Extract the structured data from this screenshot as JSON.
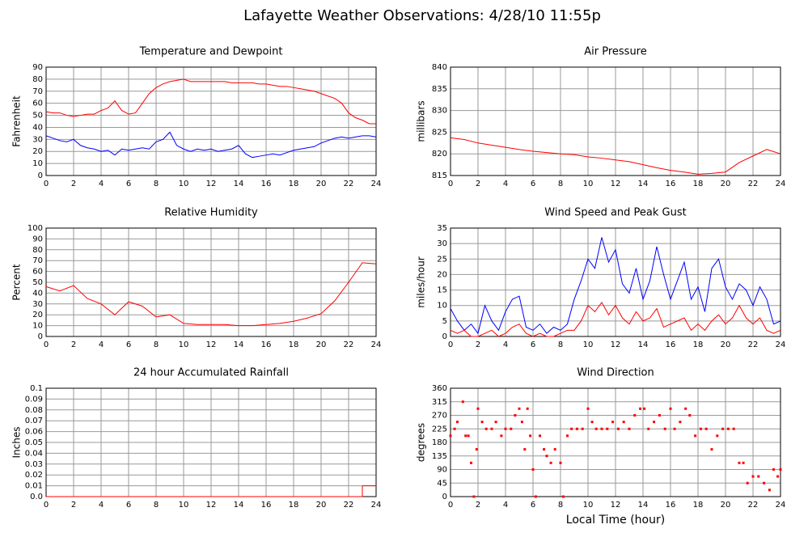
{
  "title": "Lafayette Weather Observations: 4/28/10 11:55p",
  "chart_data": [
    {
      "type": "line",
      "title": "Temperature and Dewpoint",
      "y_label": "Fahrenheit",
      "x": [
        0,
        0.5,
        1,
        1.5,
        2,
        2.5,
        3,
        3.5,
        4,
        4.5,
        5,
        5.5,
        6,
        6.5,
        7,
        7.5,
        8,
        8.5,
        9,
        9.5,
        10,
        10.5,
        11,
        11.5,
        12,
        12.5,
        13,
        13.5,
        14,
        14.5,
        15,
        15.5,
        16,
        16.5,
        17,
        17.5,
        18,
        18.5,
        19,
        19.5,
        20,
        20.5,
        21,
        21.5,
        22,
        22.5,
        23,
        23.5,
        24
      ],
      "series": [
        {
          "color": "#ff0000",
          "values": [
            53,
            52,
            52,
            50,
            49,
            50,
            51,
            51,
            54,
            56,
            62,
            54,
            51,
            52,
            60,
            68,
            73,
            76,
            78,
            79,
            80,
            78,
            78,
            78,
            78,
            78,
            78,
            77,
            77,
            77,
            77,
            76,
            76,
            75,
            74,
            74,
            73,
            72,
            71,
            70,
            68,
            66,
            64,
            60,
            52,
            48,
            46,
            43,
            43
          ]
        },
        {
          "color": "#0000ff",
          "values": [
            33,
            31,
            29,
            28,
            30,
            25,
            23,
            22,
            20,
            21,
            17,
            22,
            21,
            22,
            23,
            22,
            28,
            30,
            36,
            25,
            22,
            20,
            22,
            21,
            22,
            20,
            21,
            22,
            25,
            18,
            15,
            16,
            17,
            18,
            17,
            19,
            21,
            22,
            23,
            24,
            27,
            29,
            31,
            32,
            31,
            32,
            33,
            33,
            32
          ]
        }
      ],
      "xlim": [
        0,
        24
      ],
      "xticks": [
        0,
        2,
        4,
        6,
        8,
        10,
        12,
        14,
        16,
        18,
        20,
        22,
        24
      ],
      "ylim": [
        0,
        90
      ],
      "yticks": [
        0,
        10,
        20,
        30,
        40,
        50,
        60,
        70,
        80,
        90
      ],
      "grid": true
    },
    {
      "type": "line",
      "title": "Air Pressure",
      "y_label": "millibars",
      "x": [
        0,
        1,
        2,
        3,
        4,
        5,
        6,
        7,
        8,
        9,
        10,
        11,
        12,
        13,
        14,
        15,
        16,
        17,
        18,
        19,
        20,
        21,
        22,
        23,
        24
      ],
      "series": [
        {
          "color": "#ff0000",
          "values": [
            823.7,
            823.3,
            822.5,
            822,
            821.5,
            821,
            820.6,
            820.3,
            820,
            819.8,
            819.3,
            819,
            818.6,
            818.2,
            817.5,
            816.8,
            816.2,
            815.8,
            815.3,
            815.5,
            815.8,
            818,
            819.5,
            821,
            820
          ]
        }
      ],
      "xlim": [
        0,
        24
      ],
      "xticks": [
        0,
        2,
        4,
        6,
        8,
        10,
        12,
        14,
        16,
        18,
        20,
        22,
        24
      ],
      "ylim": [
        815,
        840
      ],
      "yticks": [
        815,
        820,
        825,
        830,
        835,
        840
      ],
      "grid": true
    },
    {
      "type": "line",
      "title": "Relative Humidity",
      "y_label": "Percent",
      "x": [
        0,
        1,
        2,
        3,
        4,
        5,
        6,
        7,
        8,
        9,
        10,
        11,
        12,
        13,
        14,
        15,
        16,
        17,
        18,
        19,
        20,
        21,
        22,
        23,
        24
      ],
      "series": [
        {
          "color": "#ff0000",
          "values": [
            46,
            42,
            47,
            35,
            30,
            20,
            32,
            28,
            18,
            20,
            12,
            11,
            11,
            11,
            10,
            10,
            11,
            12,
            14,
            17,
            21,
            33,
            50,
            68,
            67
          ]
        }
      ],
      "xlim": [
        0,
        24
      ],
      "xticks": [
        0,
        2,
        4,
        6,
        8,
        10,
        12,
        14,
        16,
        18,
        20,
        22,
        24
      ],
      "ylim": [
        0,
        100
      ],
      "yticks": [
        0,
        10,
        20,
        30,
        40,
        50,
        60,
        70,
        80,
        90,
        100
      ],
      "grid": true
    },
    {
      "type": "line",
      "title": "Wind Speed and Peak Gust",
      "y_label": "miles/hour",
      "x": [
        0,
        0.5,
        1,
        1.5,
        2,
        2.5,
        3,
        3.5,
        4,
        4.5,
        5,
        5.5,
        6,
        6.5,
        7,
        7.5,
        8,
        8.5,
        9,
        9.5,
        10,
        10.5,
        11,
        11.5,
        12,
        12.5,
        13,
        13.5,
        14,
        14.5,
        15,
        15.5,
        16,
        16.5,
        17,
        17.5,
        18,
        18.5,
        19,
        19.5,
        20,
        20.5,
        21,
        21.5,
        22,
        22.5,
        23,
        23.5,
        24
      ],
      "series": [
        {
          "color": "#0000ff",
          "values": [
            9,
            5,
            2,
            4,
            1,
            10,
            5,
            2,
            8,
            12,
            13,
            3,
            2,
            4,
            1,
            3,
            2,
            4,
            12,
            18,
            25,
            22,
            32,
            24,
            28,
            17,
            14,
            22,
            12,
            18,
            29,
            20,
            12,
            18,
            24,
            12,
            16,
            8,
            22,
            25,
            16,
            12,
            17,
            15,
            10,
            16,
            12,
            4,
            5
          ]
        },
        {
          "color": "#ff0000",
          "values": [
            2,
            1,
            2,
            0,
            0,
            1,
            2,
            0,
            1,
            3,
            4,
            1,
            0,
            1,
            0,
            0,
            1,
            2,
            2,
            5,
            10,
            8,
            11,
            7,
            10,
            6,
            4,
            8,
            5,
            6,
            9,
            3,
            4,
            5,
            6,
            2,
            4,
            2,
            5,
            7,
            4,
            6,
            10,
            6,
            4,
            6,
            2,
            1,
            2
          ]
        }
      ],
      "xlim": [
        0,
        24
      ],
      "xticks": [
        0,
        2,
        4,
        6,
        8,
        10,
        12,
        14,
        16,
        18,
        20,
        22,
        24
      ],
      "ylim": [
        0,
        35
      ],
      "yticks": [
        0,
        5,
        10,
        15,
        20,
        25,
        30,
        35
      ],
      "grid": true
    },
    {
      "type": "line",
      "title": "24 hour Accumulated Rainfall",
      "y_label": "Inches",
      "x": [
        0,
        23,
        23,
        24
      ],
      "series": [
        {
          "color": "#ff0000",
          "values": [
            0,
            0,
            0.01,
            0.01
          ]
        }
      ],
      "xlim": [
        0,
        24
      ],
      "xticks": [
        0,
        2,
        4,
        6,
        8,
        10,
        12,
        14,
        16,
        18,
        20,
        22,
        24
      ],
      "ylim": [
        0,
        0.1
      ],
      "yticks": [
        {
          "value": 0,
          "label": "0.0"
        },
        0.01,
        0.02,
        0.03,
        0.04,
        0.05,
        0.06,
        0.07,
        0.08,
        0.09,
        0.1
      ],
      "grid": true
    },
    {
      "type": "scatter",
      "title": "Wind Direction",
      "y_label": "degrees",
      "x_label": "Local Time (hour)",
      "x": [
        0,
        0.3,
        0.5,
        0.9,
        1.1,
        1.3,
        1.5,
        1.7,
        1.9,
        2,
        2.3,
        2.6,
        3,
        3.3,
        3.7,
        4,
        4.4,
        4.7,
        5,
        5.2,
        5.4,
        5.6,
        5.8,
        6,
        6.2,
        6.5,
        6.8,
        7,
        7.3,
        7.6,
        8,
        8.2,
        8.5,
        8.8,
        9.2,
        9.6,
        10,
        10.3,
        10.6,
        11,
        11.4,
        11.8,
        12.2,
        12.6,
        13,
        13.4,
        13.8,
        14.1,
        14.4,
        14.8,
        15.2,
        15.6,
        16,
        16.3,
        16.7,
        17.1,
        17.4,
        17.8,
        18.2,
        18.6,
        19,
        19.4,
        19.8,
        20.2,
        20.6,
        21,
        21.3,
        21.6,
        22,
        22.4,
        22.8,
        23.2,
        23.5,
        23.8,
        24
      ],
      "values": [
        202,
        225,
        248,
        315,
        202,
        202,
        112,
        0,
        157,
        292,
        248,
        225,
        225,
        248,
        202,
        225,
        225,
        270,
        292,
        248,
        157,
        292,
        202,
        90,
        0,
        202,
        157,
        135,
        112,
        157,
        112,
        0,
        202,
        225,
        225,
        225,
        292,
        248,
        225,
        225,
        225,
        248,
        225,
        248,
        225,
        270,
        292,
        292,
        225,
        248,
        270,
        225,
        292,
        225,
        248,
        292,
        270,
        202,
        225,
        225,
        157,
        202,
        225,
        225,
        225,
        112,
        112,
        45,
        67,
        67,
        45,
        22,
        90,
        67,
        90
      ],
      "color": "#ff0000",
      "xlim": [
        0,
        24
      ],
      "xticks": [
        0,
        2,
        4,
        6,
        8,
        10,
        12,
        14,
        16,
        18,
        20,
        22,
        24
      ],
      "ylim": [
        0,
        360
      ],
      "yticks": [
        0,
        45,
        90,
        135,
        180,
        225,
        270,
        315,
        360
      ],
      "grid": true
    }
  ]
}
